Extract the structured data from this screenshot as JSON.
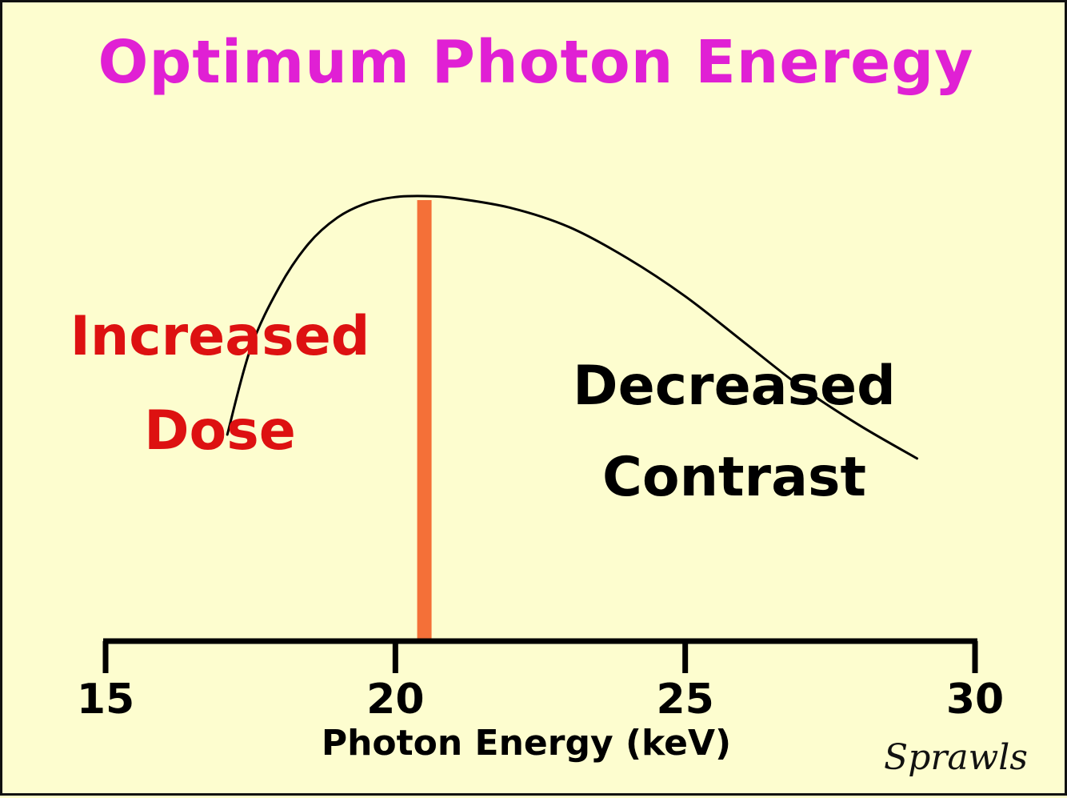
{
  "title": "Optimum Photon Eneregy",
  "colors": {
    "background": "#fdfdcf",
    "title": "#e020d4",
    "increased": "#dd1111",
    "decreased": "#000000",
    "optimum_line": "#f47038",
    "curve": "#000000"
  },
  "signature": "Sprawls",
  "chart_data": {
    "type": "line",
    "title": "Optimum Photon Eneregy",
    "xlabel": "Photon Energy (keV)",
    "ylabel": "",
    "xlim": [
      15,
      30
    ],
    "ylim": [
      0,
      1
    ],
    "xticks": [
      15,
      20,
      25,
      30
    ],
    "grid": false,
    "series": [
      {
        "x": [
          17.1,
          17.5,
          18.0,
          18.5,
          19.0,
          19.5,
          20.0,
          20.5,
          21.0,
          22.0,
          23.0,
          24.0,
          25.0,
          26.0,
          27.0,
          28.0,
          29.0
        ],
        "y": [
          0.5,
          0.68,
          0.81,
          0.9,
          0.955,
          0.985,
          0.998,
          1.0,
          0.996,
          0.975,
          0.935,
          0.87,
          0.79,
          0.695,
          0.6,
          0.52,
          0.45
        ]
      }
    ],
    "optimum_line": {
      "x": 20.5
    },
    "annotations": [
      {
        "lines": [
          "Increased",
          "Dose"
        ],
        "color": "#dd1111"
      },
      {
        "lines": [
          "Decreased",
          "Contrast"
        ],
        "color": "#000000"
      }
    ]
  }
}
